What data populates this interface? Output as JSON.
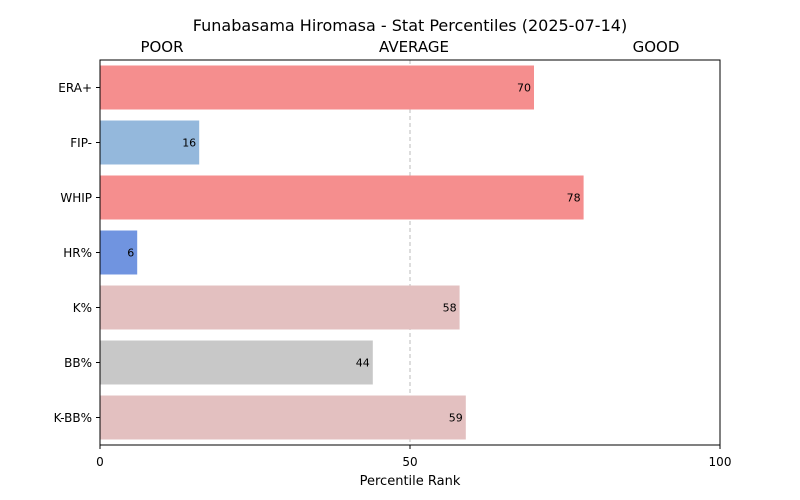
{
  "chart_data": {
    "type": "bar",
    "orientation": "horizontal",
    "title": "Funabasama Hiromasa - Stat Percentiles (2025-07-14)",
    "xlabel": "Percentile Rank",
    "ylabel": "",
    "xlim": [
      0,
      100
    ],
    "xticks": [
      "0",
      "50",
      "100"
    ],
    "reference_line": 50,
    "grid": false,
    "zone_labels": [
      "POOR",
      "AVERAGE",
      "GOOD"
    ],
    "categories": [
      "ERA+",
      "FIP-",
      "WHIP",
      "HR%",
      "K%",
      "BB%",
      "K-BB%"
    ],
    "values": [
      70,
      16,
      78,
      6,
      58,
      44,
      59
    ],
    "bar_colors": [
      "#f58e8e",
      "#94b8dc",
      "#f58e8e",
      "#7094e0",
      "#e3c0c0",
      "#c8c8c8",
      "#e3c0c0"
    ]
  }
}
